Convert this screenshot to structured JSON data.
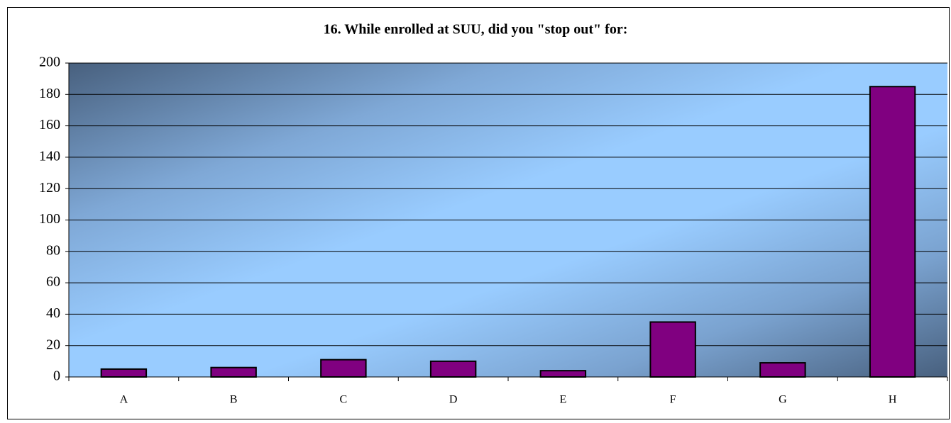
{
  "chart_data": {
    "type": "bar",
    "title": "16.  While enrolled at SUU, did you \"stop out\" for:",
    "categories": [
      "A",
      "B",
      "C",
      "D",
      "E",
      "F",
      "G",
      "H"
    ],
    "values": [
      5,
      6,
      11,
      10,
      4,
      35,
      9,
      185
    ],
    "color": "#800080",
    "ylim": [
      0,
      200
    ],
    "yticks": [
      0,
      20,
      40,
      60,
      80,
      100,
      120,
      140,
      160,
      180,
      200
    ],
    "grid": true
  }
}
